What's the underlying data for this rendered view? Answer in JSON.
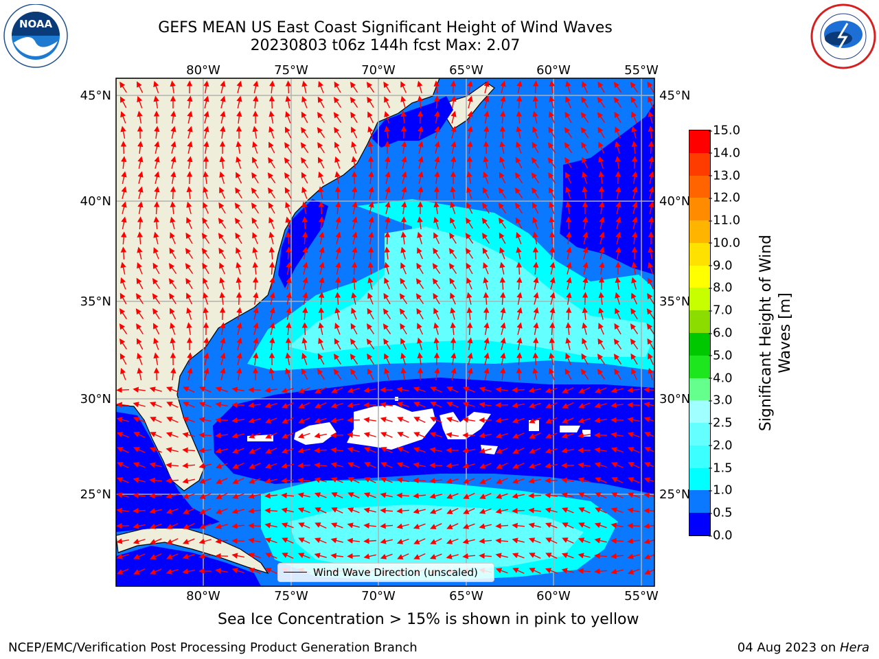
{
  "title": {
    "line1": "GEFS MEAN US East Coast Significant Height of Wind Waves",
    "line2": "20230803 t06z 144h fcst   Max: 2.07"
  },
  "logos": {
    "left": {
      "icon": "noaa-logo",
      "text": "NOAA"
    },
    "right": {
      "icon": "national-weather-service-logo",
      "text": "NATIONAL WEATHER SERVICE"
    }
  },
  "map": {
    "extent": {
      "lon": [
        -85,
        -54
      ],
      "lat": [
        20.5,
        46.2
      ]
    },
    "lon_ticks": [
      "80°W",
      "75°W",
      "70°W",
      "65°W",
      "60°W",
      "55°W"
    ],
    "lat_ticks": [
      "45°N",
      "40°N",
      "35°N",
      "30°N",
      "25°N"
    ],
    "land_color": "#efeedb",
    "gridline_color": "#b0b0b0",
    "vector_color": "#ff0000",
    "legend_label": "Wind Wave Direction (unscaled)"
  },
  "colorbar": {
    "label": "Significant Height of Wind Waves [m]",
    "ticks": [
      "0.0",
      "0.5",
      "1.0",
      "1.5",
      "2.0",
      "2.5",
      "3.0",
      "4.0",
      "5.0",
      "6.0",
      "7.0",
      "8.0",
      "9.0",
      "10.0",
      "11.0",
      "12.0",
      "13.0",
      "14.0",
      "15.0"
    ],
    "colors": [
      "#0000ff",
      "#0a78ff",
      "#00ffff",
      "#3cffff",
      "#64ffff",
      "#a0ffff",
      "#64ff8c",
      "#1ee61e",
      "#00c800",
      "#8cdc00",
      "#c8ff00",
      "#ffff00",
      "#ffe100",
      "#ffb400",
      "#ff8c00",
      "#ff6400",
      "#ff3c00",
      "#ff0000"
    ]
  },
  "notes": {
    "sea_ice": "Sea Ice Concentration > 15% is shown in pink to yellow"
  },
  "footer": {
    "left": "NCEP/EMC/Verification Post Processing Product Generation Branch",
    "right_date": "04 Aug 2023 on ",
    "right_host": "Hera"
  }
}
